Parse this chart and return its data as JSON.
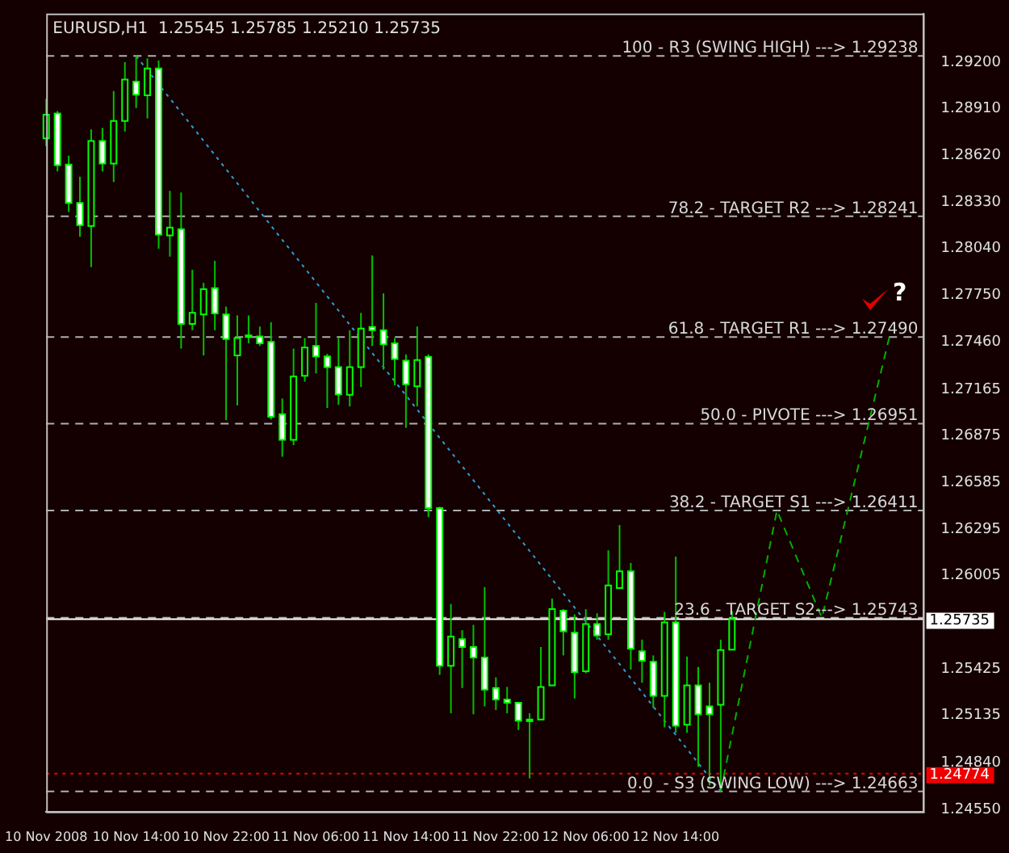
{
  "chart_data": {
    "type": "candlestick",
    "title": "EURUSD,H1  1.25545 1.25785 1.25210 1.25735",
    "categories": [
      "10 Nov 2008",
      null,
      null,
      null,
      null,
      null,
      null,
      null,
      "10 Nov 14:00",
      null,
      null,
      null,
      null,
      null,
      null,
      null,
      "10 Nov 22:00",
      null,
      null,
      null,
      null,
      null,
      null,
      null,
      "11 Nov 06:00",
      null,
      null,
      null,
      null,
      null,
      null,
      null,
      "11 Nov 14:00",
      null,
      null,
      null,
      null,
      null,
      null,
      null,
      "11 Nov 22:00",
      null,
      null,
      null,
      null,
      null,
      null,
      null,
      "12 Nov 06:00",
      null,
      null,
      null,
      null,
      null,
      null,
      null,
      "12 Nov 14:00",
      null,
      null,
      null,
      null,
      null,
      null,
      null,
      null,
      null,
      null,
      null,
      null,
      null,
      null,
      null,
      null,
      null,
      null,
      null,
      null,
      null,
      null
    ],
    "ohlc": [
      [
        1.28726,
        1.28971,
        1.28677,
        1.28873
      ],
      [
        1.2888,
        1.28896,
        1.2852,
        1.28559
      ],
      [
        1.28562,
        1.28618,
        1.28268,
        1.28324
      ],
      [
        1.28324,
        1.28487,
        1.28114,
        1.28186
      ],
      [
        1.2818,
        1.28781,
        1.27925,
        1.2871
      ],
      [
        1.2871,
        1.28791,
        1.2852,
        1.28569
      ],
      [
        1.28569,
        1.2902,
        1.28454,
        1.28834
      ],
      [
        1.28834,
        1.292,
        1.28768,
        1.29092
      ],
      [
        1.29079,
        1.29238,
        1.28915,
        1.28997
      ],
      [
        1.28994,
        1.29223,
        1.2885,
        1.29161
      ],
      [
        1.29161,
        1.2921,
        1.28039,
        1.28127
      ],
      [
        1.28121,
        1.28399,
        1.2799,
        1.2817
      ],
      [
        1.2816,
        1.28389,
        1.27418,
        1.27571
      ],
      [
        1.27571,
        1.27908,
        1.27532,
        1.2764
      ],
      [
        1.2763,
        1.27827,
        1.27375,
        1.27787
      ],
      [
        1.27794,
        1.27964,
        1.27532,
        1.27637
      ],
      [
        1.2763,
        1.27679,
        1.26973,
        1.27477
      ],
      [
        1.27375,
        1.27624,
        1.27064,
        1.27483
      ],
      [
        1.275,
        1.27624,
        1.27451,
        1.2749
      ],
      [
        1.27493,
        1.27555,
        1.27434,
        1.27451
      ],
      [
        1.2746,
        1.27582,
        1.26977,
        1.26993
      ],
      [
        1.2701,
        1.27107,
        1.26745,
        1.2685
      ],
      [
        1.2685,
        1.27418,
        1.26817,
        1.27245
      ],
      [
        1.27248,
        1.27483,
        1.27212,
        1.27424
      ],
      [
        1.27434,
        1.27702,
        1.27264,
        1.27369
      ],
      [
        1.27369,
        1.27385,
        1.27048,
        1.27303
      ],
      [
        1.27303,
        1.27483,
        1.27068,
        1.27133
      ],
      [
        1.2713,
        1.27532,
        1.27058,
        1.27303
      ],
      [
        1.27303,
        1.2764,
        1.27179,
        1.27542
      ],
      [
        1.27552,
        1.27997,
        1.27434,
        1.27532
      ],
      [
        1.27532,
        1.27761,
        1.27287,
        1.27444
      ],
      [
        1.27451,
        1.27483,
        1.27189,
        1.27353
      ],
      [
        1.27343,
        1.27382,
        1.26925,
        1.27196
      ],
      [
        1.27183,
        1.27555,
        1.27058,
        1.27346
      ],
      [
        1.27366,
        1.27382,
        1.26369,
        1.26425
      ],
      [
        1.26425,
        1.26434,
        1.25388,
        1.25444
      ],
      [
        1.25444,
        1.25829,
        1.25149,
        1.25627
      ],
      [
        1.2561,
        1.25666,
        1.25306,
        1.25561
      ],
      [
        1.25561,
        1.25699,
        1.25143,
        1.25496
      ],
      [
        1.25496,
        1.25934,
        1.25192,
        1.25296
      ],
      [
        1.25306,
        1.25372,
        1.25169,
        1.25234
      ],
      [
        1.25234,
        1.25313,
        1.25149,
        1.25215
      ],
      [
        1.25215,
        1.25215,
        1.25045,
        1.25103
      ],
      [
        1.2511,
        1.25149,
        1.24744,
        1.25106
      ],
      [
        1.2511,
        1.25561,
        1.2511,
        1.25313
      ],
      [
        1.25323,
        1.25862,
        1.25323,
        1.25797
      ],
      [
        1.25787,
        1.25797,
        1.25509,
        1.25659
      ],
      [
        1.2565,
        1.25764,
        1.25241,
        1.25404
      ],
      [
        1.25411,
        1.25797,
        1.25398,
        1.25705
      ],
      [
        1.25705,
        1.25771,
        1.25607,
        1.25633
      ],
      [
        1.2564,
        1.26163,
        1.25607,
        1.25944
      ],
      [
        1.25928,
        1.2632,
        1.25928,
        1.26032
      ],
      [
        1.26032,
        1.26084,
        1.25421,
        1.25551
      ],
      [
        1.25535,
        1.25607,
        1.25339,
        1.25476
      ],
      [
        1.2547,
        1.25509,
        1.25182,
        1.25257
      ],
      [
        1.25257,
        1.2578,
        1.25061,
        1.25715
      ],
      [
        1.25715,
        1.26124,
        1.25028,
        1.25071
      ],
      [
        1.25077,
        1.25502,
        1.25028,
        1.25323
      ],
      [
        1.25323,
        1.25437,
        1.24816,
        1.25143
      ],
      [
        1.25192,
        1.25339,
        1.247,
        1.25143
      ],
      [
        1.25202,
        1.25607,
        1.24663,
        1.25542
      ],
      [
        1.25545,
        1.25785,
        1.25545,
        1.25735
      ],
      null,
      null,
      null,
      null,
      null,
      null,
      null,
      null,
      null,
      null,
      null,
      null,
      null,
      null,
      null,
      null,
      null
    ],
    "series": [
      {
        "type": "line",
        "color": "#2a9fd6",
        "line_style": "dotted",
        "values": [
          null,
          null,
          null,
          null,
          null,
          null,
          null,
          null,
          1.29238,
          null,
          null,
          null,
          null,
          null,
          null,
          null,
          null,
          null,
          null,
          null,
          null,
          null,
          null,
          null,
          null,
          null,
          null,
          null,
          null,
          null,
          null,
          null,
          null,
          null,
          null,
          null,
          null,
          null,
          null,
          null,
          null,
          null,
          null,
          null,
          null,
          null,
          null,
          null,
          null,
          null,
          null,
          null,
          null,
          null,
          null,
          null,
          null,
          null,
          null,
          null,
          1.24663,
          null,
          null,
          null,
          null,
          null,
          null,
          null,
          null,
          null,
          null,
          null,
          null,
          null,
          null,
          null,
          null,
          null,
          null
        ]
      },
      {
        "type": "line",
        "color": "#00b000",
        "line_style": "dashed",
        "values": [
          null,
          null,
          null,
          null,
          null,
          null,
          null,
          null,
          null,
          null,
          null,
          null,
          null,
          null,
          null,
          null,
          null,
          null,
          null,
          null,
          null,
          null,
          null,
          null,
          null,
          null,
          null,
          null,
          null,
          null,
          null,
          null,
          null,
          null,
          null,
          null,
          null,
          null,
          null,
          null,
          null,
          null,
          null,
          null,
          null,
          null,
          null,
          null,
          null,
          null,
          null,
          null,
          null,
          null,
          null,
          null,
          null,
          null,
          null,
          null,
          1.24663,
          null,
          null,
          null,
          null,
          1.26411,
          null,
          null,
          null,
          1.25743,
          null,
          null,
          null,
          null,
          null,
          1.2749,
          null,
          null,
          null
        ]
      }
    ],
    "ylim": [
      1.24537,
      1.29502
    ],
    "yticks": [
      {
        "value": 1.292,
        "label": "1.29200"
      },
      {
        "value": 1.2891,
        "label": "1.28910"
      },
      {
        "value": 1.2862,
        "label": "1.28620"
      },
      {
        "value": 1.2833,
        "label": "1.28330"
      },
      {
        "value": 1.2804,
        "label": "1.28040"
      },
      {
        "value": 1.2775,
        "label": "1.27750"
      },
      {
        "value": 1.2746,
        "label": "1.27460"
      },
      {
        "value": 1.27165,
        "label": "1.27165"
      },
      {
        "value": 1.26875,
        "label": "1.26875"
      },
      {
        "value": 1.26585,
        "label": "1.26585"
      },
      {
        "value": 1.26295,
        "label": "1.26295"
      },
      {
        "value": 1.26005,
        "label": "1.26005"
      },
      {
        "value": 1.25425,
        "label": "1.25425"
      },
      {
        "value": 1.25135,
        "label": "1.25135"
      },
      {
        "value": 1.2484,
        "label": "1.24840"
      },
      {
        "value": 1.2455,
        "label": "1.24550"
      }
    ],
    "ref_lines": [
      {
        "axis": "y",
        "value": 1.29238,
        "label": "100 - R3 (SWING HIGH) ---> 1.29238",
        "color": "#b0b0b0",
        "line_style": "dashed"
      },
      {
        "axis": "y",
        "value": 1.28241,
        "label": "78.2 - TARGET R2 ---> 1.28241",
        "color": "#b0b0b0",
        "line_style": "dashed"
      },
      {
        "axis": "y",
        "value": 1.2749,
        "label": "61.8 - TARGET R1 ---> 1.27490",
        "color": "#b0b0b0",
        "line_style": "dashed"
      },
      {
        "axis": "y",
        "value": 1.26951,
        "label": "50.0 - PIVOTE ---> 1.26951",
        "color": "#b0b0b0",
        "line_style": "dashed"
      },
      {
        "axis": "y",
        "value": 1.26411,
        "label": "38.2 - TARGET S1 ---> 1.26411",
        "color": "#b0b0b0",
        "line_style": "dashed"
      },
      {
        "axis": "y",
        "value": 1.25743,
        "label": "23.6 - TARGET S2---> 1.25743",
        "color": "#b0b0b0",
        "line_style": "dashed"
      },
      {
        "axis": "y",
        "value": 1.24663,
        "label": "0.0  - S3 (SWING LOW) ---> 1.24663",
        "color": "#b0b0b0",
        "line_style": "dashed"
      },
      {
        "axis": "y",
        "value": 1.25735,
        "label": "1.25735",
        "color": "#ffffff",
        "line_style": "solid"
      },
      {
        "axis": "y",
        "value": 1.24774,
        "label": "1.24774",
        "color": "#ee0000",
        "line_style": "dotted"
      }
    ],
    "annotations": [
      "?"
    ],
    "grid": false,
    "legend": false
  }
}
